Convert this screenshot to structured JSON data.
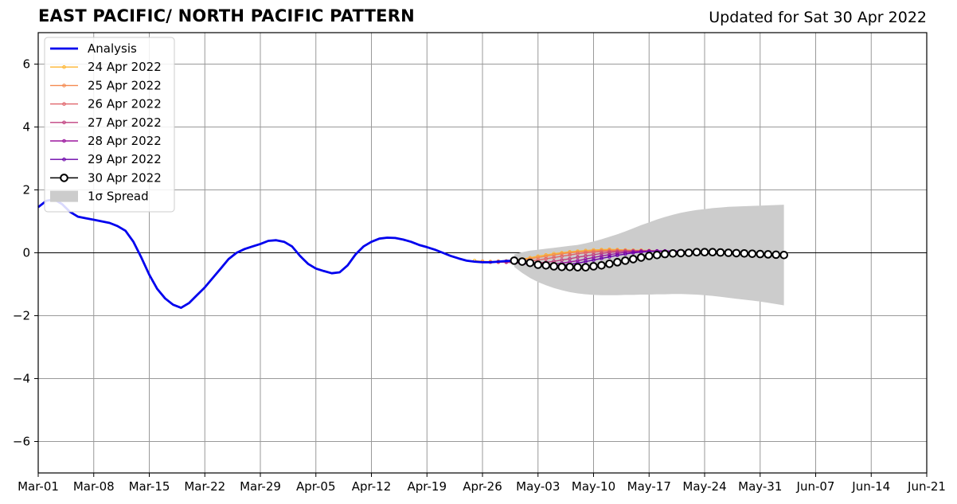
{
  "chart_data": {
    "type": "line",
    "title": "EAST PACIFIC/ NORTH PACIFIC PATTERN",
    "subtitle": "Updated for Sat 30 Apr 2022",
    "xlabel": "",
    "ylabel": "",
    "ylim": [
      -7,
      7
    ],
    "yticks": [
      -6,
      -4,
      -2,
      0,
      2,
      4,
      6
    ],
    "ytick_labels": [
      "−6",
      "−4",
      "−2",
      "0",
      "2",
      "4",
      "6"
    ],
    "xlim": [
      "2022-03-01",
      "2022-06-21"
    ],
    "xticks": [
      "2022-03-01",
      "2022-03-08",
      "2022-03-15",
      "2022-03-22",
      "2022-03-29",
      "2022-04-05",
      "2022-04-12",
      "2022-04-19",
      "2022-04-26",
      "2022-05-03",
      "2022-05-10",
      "2022-05-17",
      "2022-05-24",
      "2022-05-31",
      "2022-06-07",
      "2022-06-14",
      "2022-06-21"
    ],
    "xtick_labels": [
      "Mar-01",
      "Mar-08",
      "Mar-15",
      "Mar-22",
      "Mar-29",
      "Apr-05",
      "Apr-12",
      "Apr-19",
      "Apr-26",
      "May-03",
      "May-10",
      "May-17",
      "May-24",
      "May-31",
      "Jun-07",
      "Jun-14",
      "Jun-21"
    ],
    "grid": true,
    "legend_position": "top-left",
    "analysis": {
      "name": "Analysis",
      "color": "#0000ee",
      "x": [
        "2022-03-01",
        "2022-03-02",
        "2022-03-03",
        "2022-03-04",
        "2022-03-05",
        "2022-03-06",
        "2022-03-07",
        "2022-03-08",
        "2022-03-09",
        "2022-03-10",
        "2022-03-11",
        "2022-03-12",
        "2022-03-13",
        "2022-03-14",
        "2022-03-15",
        "2022-03-16",
        "2022-03-17",
        "2022-03-18",
        "2022-03-19",
        "2022-03-20",
        "2022-03-21",
        "2022-03-22",
        "2022-03-23",
        "2022-03-24",
        "2022-03-25",
        "2022-03-26",
        "2022-03-27",
        "2022-03-28",
        "2022-03-29",
        "2022-03-30",
        "2022-03-31",
        "2022-04-01",
        "2022-04-02",
        "2022-04-03",
        "2022-04-04",
        "2022-04-05",
        "2022-04-06",
        "2022-04-07",
        "2022-04-08",
        "2022-04-09",
        "2022-04-10",
        "2022-04-11",
        "2022-04-12",
        "2022-04-13",
        "2022-04-14",
        "2022-04-15",
        "2022-04-16",
        "2022-04-17",
        "2022-04-18",
        "2022-04-19",
        "2022-04-20",
        "2022-04-21",
        "2022-04-22",
        "2022-04-23",
        "2022-04-24",
        "2022-04-25",
        "2022-04-26",
        "2022-04-27",
        "2022-04-28",
        "2022-04-29",
        "2022-04-30"
      ],
      "values": [
        1.45,
        1.65,
        1.7,
        1.55,
        1.3,
        1.15,
        1.1,
        1.05,
        1.0,
        0.95,
        0.85,
        0.7,
        0.35,
        -0.15,
        -0.7,
        -1.15,
        -1.45,
        -1.65,
        -1.75,
        -1.6,
        -1.35,
        -1.1,
        -0.8,
        -0.5,
        -0.2,
        0.0,
        0.12,
        0.2,
        0.28,
        0.38,
        0.4,
        0.35,
        0.2,
        -0.1,
        -0.35,
        -0.5,
        -0.58,
        -0.65,
        -0.62,
        -0.4,
        -0.05,
        0.2,
        0.35,
        0.45,
        0.48,
        0.47,
        0.42,
        0.35,
        0.25,
        0.18,
        0.1,
        0.0,
        -0.1,
        -0.18,
        -0.25,
        -0.28,
        -0.3,
        -0.3,
        -0.28,
        -0.26,
        -0.25
      ]
    },
    "forecasts": [
      {
        "name": "24 Apr 2022",
        "color": "#fdb42f",
        "start": "2022-04-25",
        "values": [
          -0.25,
          -0.27,
          -0.28,
          -0.27,
          -0.26,
          -0.24,
          -0.2,
          -0.16,
          -0.11,
          -0.07,
          -0.03,
          0.0,
          0.03,
          0.05,
          0.07,
          0.09,
          0.1,
          0.11,
          0.1,
          0.09,
          0.08,
          0.08,
          0.07,
          0.06,
          0.05,
          0.04,
          0.03,
          0.02,
          0.01,
          0.01
        ]
      },
      {
        "name": "25 Apr 2022",
        "color": "#f48a50",
        "start": "2022-04-26",
        "values": [
          -0.28,
          -0.29,
          -0.29,
          -0.28,
          -0.26,
          -0.23,
          -0.19,
          -0.15,
          -0.11,
          -0.07,
          -0.03,
          0.0,
          0.02,
          0.04,
          0.06,
          0.07,
          0.08,
          0.08,
          0.08,
          0.07,
          0.07,
          0.06,
          0.05,
          0.05,
          0.04,
          0.03,
          0.03,
          0.02,
          0.02,
          0.01
        ]
      },
      {
        "name": "26 Apr 2022",
        "color": "#e0636a",
        "start": "2022-04-27",
        "values": [
          -0.3,
          -0.3,
          -0.3,
          -0.29,
          -0.28,
          -0.26,
          -0.23,
          -0.19,
          -0.15,
          -0.11,
          -0.07,
          -0.03,
          0.0,
          0.02,
          0.04,
          0.05,
          0.06,
          0.06,
          0.06,
          0.05,
          0.05,
          0.04,
          0.04,
          0.03,
          0.03,
          0.02,
          0.02,
          0.01,
          0.01,
          0.0
        ]
      },
      {
        "name": "27 Apr 2022",
        "color": "#c0407f",
        "start": "2022-04-28",
        "values": [
          -0.28,
          -0.3,
          -0.32,
          -0.33,
          -0.33,
          -0.32,
          -0.3,
          -0.27,
          -0.23,
          -0.19,
          -0.14,
          -0.1,
          -0.06,
          -0.02,
          0.01,
          0.03,
          0.05,
          0.06,
          0.06,
          0.06,
          0.05,
          0.05,
          0.04,
          0.04,
          0.03,
          0.03,
          0.02,
          0.02,
          0.01,
          0.01
        ]
      },
      {
        "name": "28 Apr 2022",
        "color": "#9b179e",
        "start": "2022-04-29",
        "values": [
          -0.27,
          -0.3,
          -0.34,
          -0.37,
          -0.38,
          -0.38,
          -0.36,
          -0.33,
          -0.29,
          -0.25,
          -0.2,
          -0.15,
          -0.1,
          -0.06,
          -0.02,
          0.01,
          0.03,
          0.05,
          0.06,
          0.06,
          0.06,
          0.05,
          0.05,
          0.04,
          0.04,
          0.03,
          0.03,
          0.02,
          0.02,
          0.01
        ]
      },
      {
        "name": "29 Apr 2022",
        "color": "#6a00a8",
        "start": "2022-04-30",
        "values": [
          -0.28,
          -0.32,
          -0.36,
          -0.4,
          -0.42,
          -0.42,
          -0.4,
          -0.37,
          -0.33,
          -0.28,
          -0.23,
          -0.18,
          -0.13,
          -0.08,
          -0.04,
          0.0,
          0.02,
          0.04,
          0.05,
          0.05,
          0.05,
          0.05,
          0.04,
          0.04,
          0.03,
          0.03,
          0.02,
          0.02,
          0.01,
          0.01
        ]
      }
    ],
    "latest_forecast": {
      "name": "30 Apr 2022",
      "color": "#000000",
      "start": "2022-04-30",
      "values": [
        -0.25,
        -0.28,
        -0.32,
        -0.38,
        -0.4,
        -0.43,
        -0.45,
        -0.45,
        -0.46,
        -0.46,
        -0.43,
        -0.4,
        -0.35,
        -0.3,
        -0.25,
        -0.2,
        -0.15,
        -0.1,
        -0.07,
        -0.04,
        -0.02,
        -0.01,
        0.0,
        0.02,
        0.02,
        0.02,
        0.01,
        0.0,
        -0.01,
        -0.02,
        -0.03,
        -0.04,
        -0.05,
        -0.06,
        -0.07
      ]
    },
    "spread": {
      "name": "1σ Spread",
      "color": "#cccccc",
      "start": "2022-04-30",
      "upper": [
        -0.05,
        0.02,
        0.07,
        0.1,
        0.13,
        0.16,
        0.19,
        0.22,
        0.25,
        0.3,
        0.36,
        0.43,
        0.51,
        0.59,
        0.68,
        0.78,
        0.88,
        0.97,
        1.06,
        1.14,
        1.21,
        1.27,
        1.32,
        1.36,
        1.39,
        1.42,
        1.44,
        1.46,
        1.47,
        1.48,
        1.49,
        1.5,
        1.51,
        1.52,
        1.53
      ],
      "lower": [
        -0.45,
        -0.64,
        -0.8,
        -0.93,
        -1.03,
        -1.12,
        -1.19,
        -1.25,
        -1.29,
        -1.32,
        -1.34,
        -1.35,
        -1.35,
        -1.35,
        -1.34,
        -1.34,
        -1.33,
        -1.33,
        -1.32,
        -1.32,
        -1.31,
        -1.31,
        -1.32,
        -1.33,
        -1.35,
        -1.37,
        -1.4,
        -1.43,
        -1.46,
        -1.49,
        -1.52,
        -1.55,
        -1.59,
        -1.63,
        -1.67
      ]
    }
  }
}
